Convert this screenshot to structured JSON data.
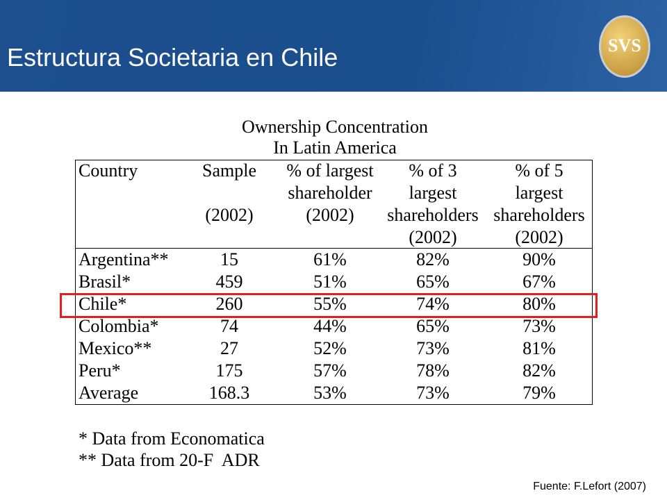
{
  "header": {
    "title": "Estructura Societaria en Chile",
    "logo": "SVS"
  },
  "table": {
    "title": [
      "Ownership Concentration",
      "In Latin America"
    ],
    "columns": [
      [
        "Country"
      ],
      [
        "Sample",
        "(2002)"
      ],
      [
        "% of largest",
        "shareholder",
        "(2002)"
      ],
      [
        "% of 3",
        "largest",
        "shareholders",
        "(2002)"
      ],
      [
        "% of 5",
        "largest",
        "shareholders",
        "(2002)"
      ]
    ],
    "rows": [
      [
        "Argentina**",
        "15",
        "61%",
        "82%",
        "90%"
      ],
      [
        "Brasil*",
        "459",
        "51%",
        "65%",
        "67%"
      ],
      [
        "Chile*",
        "260",
        "55%",
        "74%",
        "80%"
      ],
      [
        "Colombia*",
        "74",
        "44%",
        "65%",
        "73%"
      ],
      [
        "Mexico**",
        "27",
        "52%",
        "73%",
        "81%"
      ],
      [
        "Peru*",
        "175",
        "57%",
        "78%",
        "82%"
      ],
      [
        "Average",
        "168.3",
        "53%",
        "73%",
        "79%"
      ]
    ]
  },
  "footnotes": [
    "* Data from Economatica",
    "** Data from 20-F  ADR"
  ],
  "source": "Fuente: F.Lefort (2007)"
}
